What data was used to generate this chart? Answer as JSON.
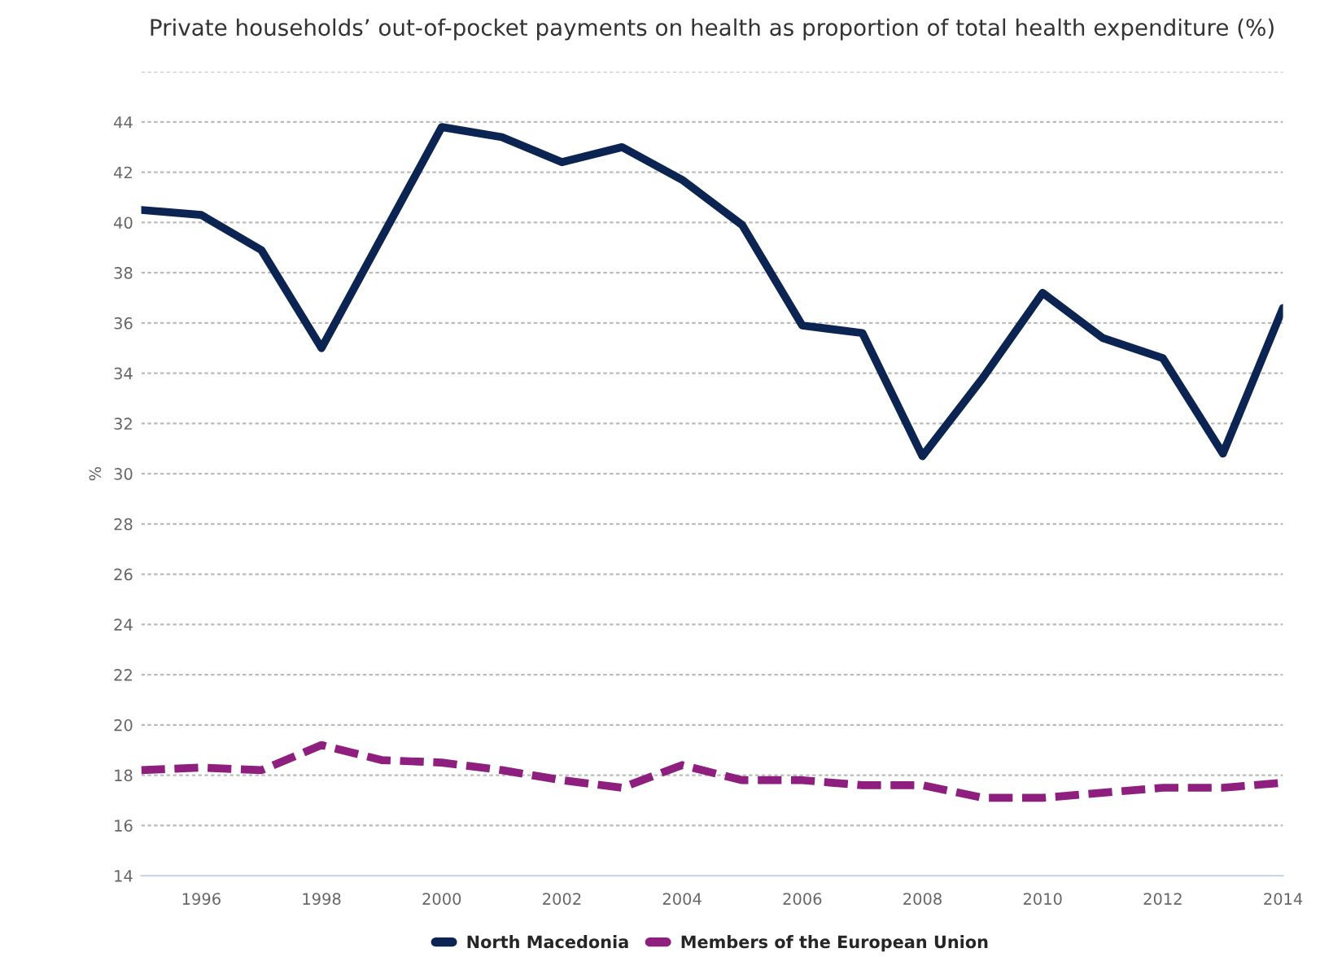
{
  "chart_data": {
    "type": "line",
    "title": "Private households’ out-of-pocket payments on health as proportion of total health expenditure (%)",
    "ylabel": "%",
    "x": [
      1995,
      1996,
      1997,
      1998,
      1999,
      2000,
      2001,
      2002,
      2003,
      2004,
      2005,
      2006,
      2007,
      2008,
      2009,
      2010,
      2011,
      2012,
      2013,
      2014
    ],
    "series": [
      {
        "name": "North Macedonia",
        "color": "#0b2452",
        "line_style": "solid",
        "values": [
          40.5,
          40.3,
          38.9,
          35.0,
          39.4,
          43.8,
          43.4,
          42.4,
          43.0,
          41.7,
          39.9,
          35.9,
          35.6,
          30.7,
          33.8,
          37.2,
          35.4,
          34.6,
          30.8,
          36.6
        ]
      },
      {
        "name": "Members of the European Union",
        "color": "#8e1f7f",
        "line_style": "dashed",
        "values": [
          18.2,
          18.3,
          18.2,
          19.2,
          18.6,
          18.5,
          18.2,
          17.8,
          17.5,
          18.4,
          17.8,
          17.8,
          17.6,
          17.6,
          17.1,
          17.1,
          17.3,
          17.5,
          17.5,
          17.7
        ]
      }
    ],
    "xlim": [
      1995,
      2014
    ],
    "xticks": [
      1996,
      1998,
      2000,
      2002,
      2004,
      2006,
      2008,
      2010,
      2012,
      2014
    ],
    "ylim": [
      14,
      46
    ],
    "yticks": [
      14,
      16,
      18,
      20,
      22,
      24,
      26,
      28,
      30,
      32,
      34,
      36,
      38,
      40,
      42,
      44,
      {
        "value": 46,
        "label": null
      }
    ],
    "grid": "y",
    "legend": "bottom",
    "marker": "none"
  }
}
